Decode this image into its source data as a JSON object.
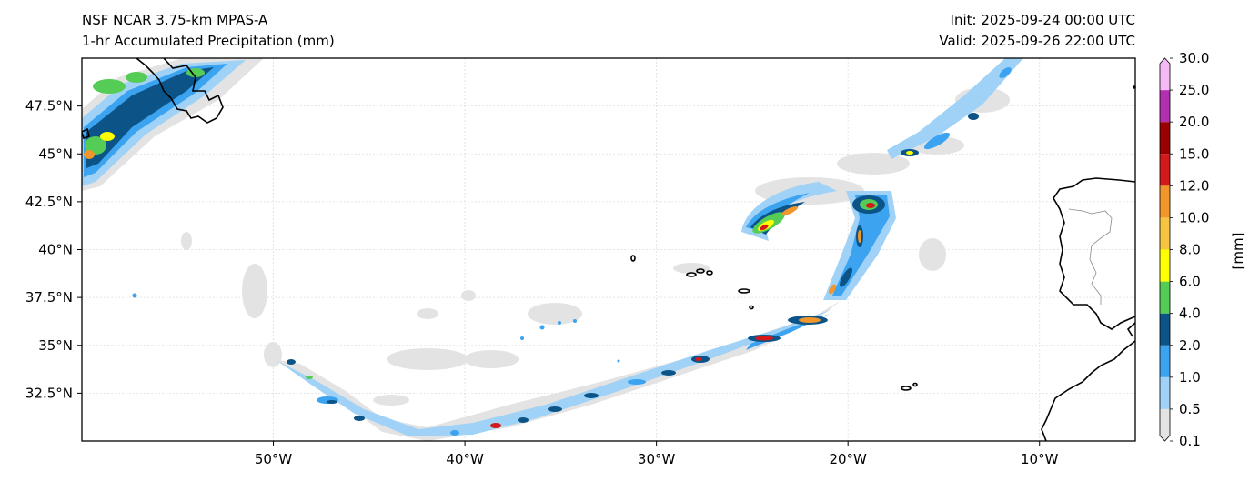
{
  "titles": {
    "model": "NSF NCAR 3.75-km MPAS-A",
    "field": "1-hr Accumulated Precipitation (mm)",
    "init": "Init: 2025-09-24 00:00 UTC",
    "valid": "Valid: 2025-09-26 22:00 UTC"
  },
  "axes": {
    "lat_ticks": [
      {
        "value": 47.5,
        "label": "47.5°N"
      },
      {
        "value": 45,
        "label": "45°N"
      },
      {
        "value": 42.5,
        "label": "42.5°N"
      },
      {
        "value": 40,
        "label": "40°N"
      },
      {
        "value": 37.5,
        "label": "37.5°N"
      },
      {
        "value": 35,
        "label": "35°N"
      },
      {
        "value": 32.5,
        "label": "32.5°N"
      }
    ],
    "lon_ticks": [
      {
        "value": -50,
        "label": "50°W"
      },
      {
        "value": -40,
        "label": "40°W"
      },
      {
        "value": -30,
        "label": "30°W"
      },
      {
        "value": -20,
        "label": "20°W"
      },
      {
        "value": -10,
        "label": "10°W"
      }
    ],
    "lon_range": [
      -60,
      -5
    ],
    "lat_range": [
      30,
      50
    ]
  },
  "colorbar": {
    "label": "[mm]",
    "levels": [
      "0.1",
      "0.5",
      "1.0",
      "2.0",
      "4.0",
      "6.0",
      "8.0",
      "10.0",
      "12.0",
      "15.0",
      "20.0",
      "25.0",
      "30.0"
    ],
    "colors": [
      "#e3e3e3",
      "#9fd2f6",
      "#3ba3f0",
      "#0c5487",
      "#55cc55",
      "#ffff00",
      "#f5c542",
      "#f0962a",
      "#d21a1a",
      "#990000",
      "#b030b0",
      "#f6b8f6"
    ]
  }
}
